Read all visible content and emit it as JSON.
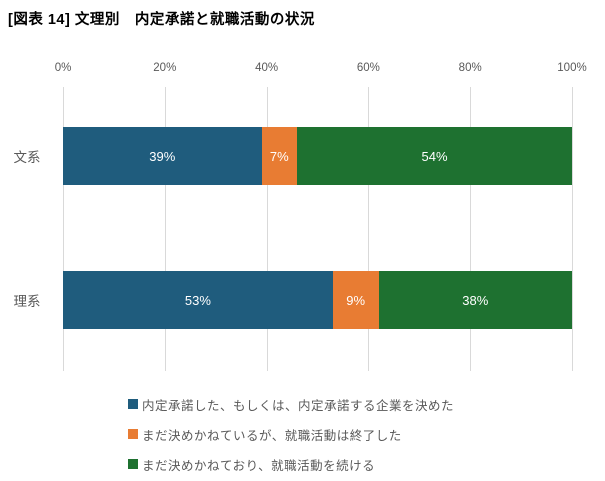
{
  "title": "[図表 14] 文理別　内定承諾と就職活動の状況",
  "chart_data": {
    "type": "bar",
    "orientation": "horizontal-stacked",
    "title": "[図表 14] 文理別　内定承諾と就職活動の状況",
    "categories": [
      "文系",
      "理系"
    ],
    "series": [
      {
        "name": "内定承諾した、もしくは、内定承諾する企業を決めた",
        "color": "#1f5c7d",
        "values": [
          39,
          53
        ]
      },
      {
        "name": "まだ決めかねているが、就職活動は終了した",
        "color": "#e87c33",
        "values": [
          7,
          9
        ]
      },
      {
        "name": "まだ決めかねており、就職活動を続ける",
        "color": "#1e7130",
        "values": [
          54,
          38
        ]
      }
    ],
    "data_label_suffix": "%",
    "x_ticks": [
      "0%",
      "20%",
      "40%",
      "60%",
      "80%",
      "100%"
    ],
    "xlim": [
      0,
      100
    ],
    "grid": true,
    "legend_position": "bottom"
  },
  "colors": {
    "gridline": "#d9d9d9",
    "axis_text": "#595959",
    "data_label": "#ffffff",
    "title_text": "#000000"
  }
}
